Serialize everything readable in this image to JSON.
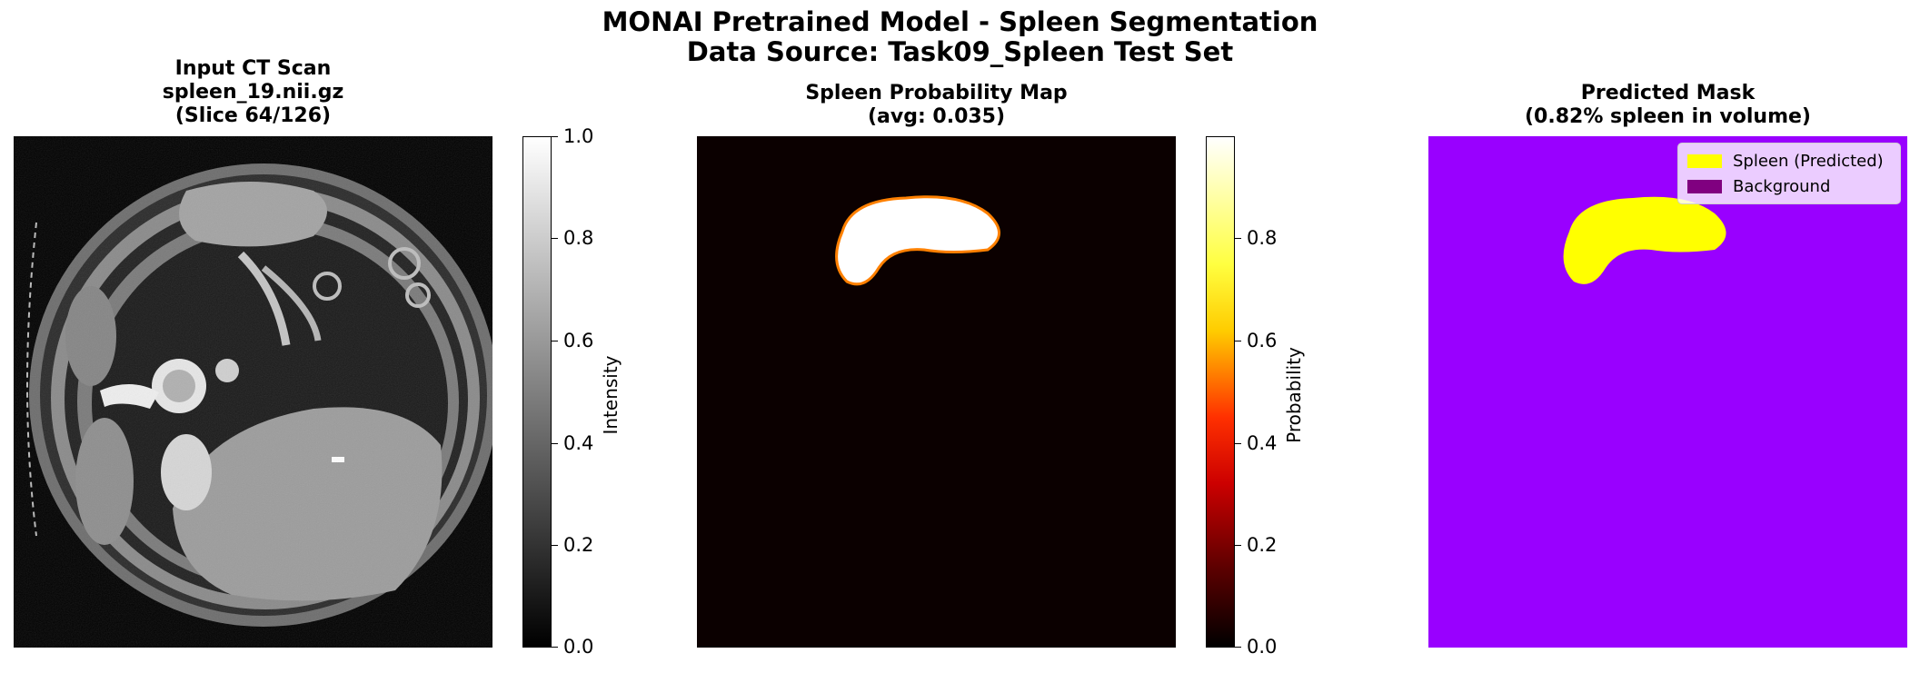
{
  "figure": {
    "title_line1": "MONAI Pretrained Model - Spleen Segmentation",
    "title_line2": "Data Source: Task09_Spleen Test Set"
  },
  "panels": {
    "input": {
      "title_line1": "Input CT Scan",
      "title_line2": "spleen_19.nii.gz",
      "title_line3": "(Slice 64/126)",
      "colorbar": {
        "label": "Intensity",
        "colormap": "gray",
        "range": [
          0.0,
          1.0
        ],
        "ticks": [
          "0.0",
          "0.2",
          "0.4",
          "0.6",
          "0.8",
          "1.0"
        ]
      }
    },
    "probability": {
      "title_line1": "Spleen Probability Map",
      "title_line2": "(avg: 0.035)",
      "colorbar": {
        "label": "Probability",
        "colormap": "hot",
        "range": [
          0.0,
          0.99
        ],
        "ticks": [
          "0.0",
          "0.2",
          "0.4",
          "0.6",
          "0.8"
        ]
      }
    },
    "mask": {
      "title_line1": "Predicted Mask",
      "title_line2": "(0.82% spleen in volume)",
      "background_color": "#9900ff",
      "spleen_color": "#ffff00",
      "legend": [
        {
          "label": "Spleen (Predicted)",
          "color": "#ffff00"
        },
        {
          "label": "Background",
          "color": "#800080"
        }
      ]
    }
  }
}
